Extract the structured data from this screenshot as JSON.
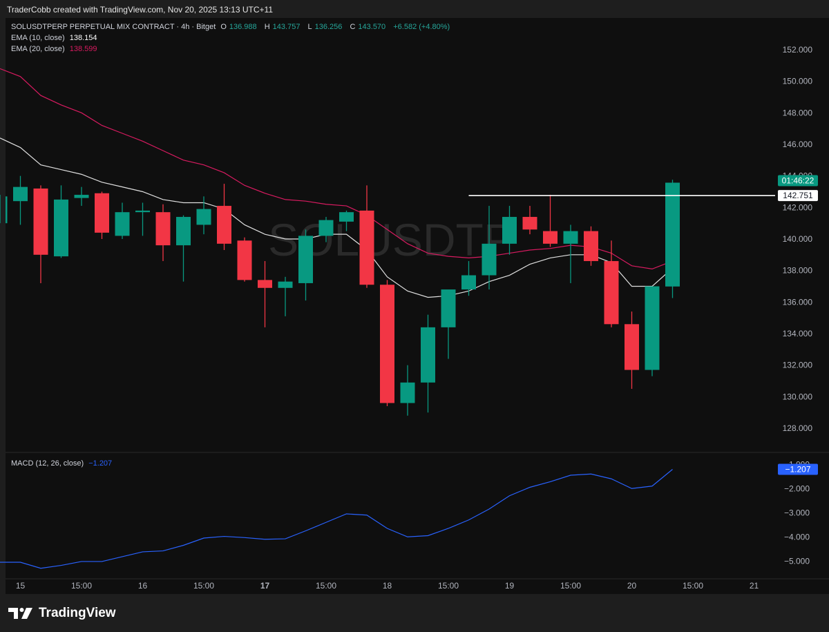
{
  "header": {
    "attribution": "TraderCobb created with TradingView.com, Nov 20, 2025 13:13 UTC+11"
  },
  "legend": {
    "symbol": "SOLUSDTPERP PERPETUAL MIX CONTRACT · 4h · Bitget",
    "o_label": "O",
    "o_value": "136.988",
    "h_label": "H",
    "h_value": "143.757",
    "l_label": "L",
    "l_value": "136.256",
    "c_label": "C",
    "c_value": "143.570",
    "change": "+6.582 (+4.80%)",
    "ema10_label": "EMA (10, close)",
    "ema10_value": "138.154",
    "ema20_label": "EMA (20, close)",
    "ema20_value": "138.599",
    "macd_label": "MACD (12, 26, close)",
    "macd_value": "−1.207"
  },
  "watermark": "SOLUSDTP",
  "footer": {
    "brand": "TradingView"
  },
  "colors": {
    "up": "#089981",
    "down": "#f23645",
    "ema10": "#e0e0e0",
    "ema20": "#d81b60",
    "macd": "#2962ff",
    "background": "#0f0f0f"
  },
  "chart_data": [
    {
      "type": "candlestick",
      "ylim": [
        126.6,
        153.4
      ],
      "y_ticks": [
        "152.000",
        "150.000",
        "148.000",
        "146.000",
        "144.000",
        "142.000",
        "140.000",
        "138.000",
        "136.000",
        "134.000",
        "132.000",
        "130.000",
        "128.000"
      ],
      "x_ticks": [
        "15",
        "15:00",
        "16",
        "15:00",
        "17",
        "15:00",
        "18",
        "15:00",
        "19",
        "15:00",
        "20",
        "15:00",
        "21"
      ],
      "candles": [
        {
          "o": 141.0,
          "h": 142.8,
          "l": 141.0,
          "c": 142.7
        },
        {
          "o": 142.4,
          "h": 144.0,
          "l": 140.9,
          "c": 143.3
        },
        {
          "o": 143.2,
          "h": 143.4,
          "l": 137.2,
          "c": 139.0
        },
        {
          "o": 138.9,
          "h": 143.4,
          "l": 138.8,
          "c": 142.5
        },
        {
          "o": 142.6,
          "h": 143.3,
          "l": 142.1,
          "c": 142.8
        },
        {
          "o": 142.9,
          "h": 143.0,
          "l": 140.0,
          "c": 140.4
        },
        {
          "o": 140.2,
          "h": 142.3,
          "l": 140.0,
          "c": 141.7
        },
        {
          "o": 141.7,
          "h": 142.3,
          "l": 140.2,
          "c": 141.8
        },
        {
          "o": 141.7,
          "h": 142.2,
          "l": 138.6,
          "c": 139.6
        },
        {
          "o": 139.6,
          "h": 141.5,
          "l": 137.3,
          "c": 141.4
        },
        {
          "o": 140.9,
          "h": 142.7,
          "l": 140.3,
          "c": 141.9
        },
        {
          "o": 142.1,
          "h": 143.5,
          "l": 139.3,
          "c": 139.7
        },
        {
          "o": 139.9,
          "h": 140.1,
          "l": 137.3,
          "c": 137.4
        },
        {
          "o": 137.4,
          "h": 138.6,
          "l": 134.4,
          "c": 136.9
        },
        {
          "o": 136.9,
          "h": 137.6,
          "l": 135.1,
          "c": 137.3
        },
        {
          "o": 137.2,
          "h": 140.6,
          "l": 136.1,
          "c": 140.2
        },
        {
          "o": 140.2,
          "h": 141.4,
          "l": 139.8,
          "c": 141.2
        },
        {
          "o": 141.1,
          "h": 141.8,
          "l": 140.5,
          "c": 141.7
        },
        {
          "o": 141.8,
          "h": 143.4,
          "l": 136.9,
          "c": 137.1
        },
        {
          "o": 137.1,
          "h": 137.4,
          "l": 129.4,
          "c": 129.6
        },
        {
          "o": 129.6,
          "h": 132.0,
          "l": 128.8,
          "c": 130.9
        },
        {
          "o": 130.9,
          "h": 135.2,
          "l": 129.0,
          "c": 134.4
        },
        {
          "o": 134.4,
          "h": 136.7,
          "l": 132.4,
          "c": 136.8
        },
        {
          "o": 136.8,
          "h": 138.6,
          "l": 136.4,
          "c": 137.7
        },
        {
          "o": 137.7,
          "h": 142.1,
          "l": 136.8,
          "c": 139.7
        },
        {
          "o": 139.7,
          "h": 142.1,
          "l": 139.0,
          "c": 141.4
        },
        {
          "o": 141.4,
          "h": 142.1,
          "l": 140.3,
          "c": 140.6
        },
        {
          "o": 140.5,
          "h": 142.8,
          "l": 139.5,
          "c": 139.7
        },
        {
          "o": 139.7,
          "h": 140.9,
          "l": 137.2,
          "c": 140.5
        },
        {
          "o": 140.5,
          "h": 140.8,
          "l": 138.3,
          "c": 138.6
        },
        {
          "o": 138.6,
          "h": 139.9,
          "l": 134.4,
          "c": 134.6
        },
        {
          "o": 134.6,
          "h": 135.4,
          "l": 130.5,
          "c": 131.7
        },
        {
          "o": 131.7,
          "h": 137.0,
          "l": 131.3,
          "c": 137.0
        },
        {
          "o": 136.988,
          "h": 143.757,
          "l": 136.256,
          "c": 143.57
        }
      ],
      "ema10": [
        146.4,
        145.8,
        144.7,
        144.4,
        144.1,
        143.6,
        143.3,
        143.0,
        142.5,
        142.3,
        142.3,
        141.9,
        140.9,
        140.3,
        140.0,
        140.0,
        140.3,
        140.3,
        139.3,
        137.6,
        136.7,
        136.3,
        136.4,
        136.7,
        137.3,
        137.7,
        138.4,
        138.8,
        139.0,
        139.0,
        138.5,
        137.0,
        137.0,
        138.154
      ],
      "ema20": [
        150.8,
        150.3,
        149.1,
        148.5,
        148.0,
        147.2,
        146.7,
        146.2,
        145.6,
        145.0,
        144.7,
        144.2,
        143.4,
        142.9,
        142.5,
        142.4,
        142.2,
        142.1,
        141.5,
        140.6,
        139.7,
        139.1,
        138.9,
        138.8,
        138.9,
        139.1,
        139.3,
        139.4,
        139.6,
        139.5,
        139.1,
        138.3,
        138.1,
        138.599
      ],
      "horizontal_line": {
        "value": 142.751,
        "label": "142.751"
      },
      "countdown_label": "01:46:22"
    },
    {
      "type": "line",
      "title": "MACD (12, 26, close)",
      "ylim": [
        -5.65,
        -0.65
      ],
      "y_ticks": [
        "−1.000",
        "−2.000",
        "−3.000",
        "−4.000",
        "−5.000"
      ],
      "values": [
        -5.05,
        -5.05,
        -5.3,
        -5.18,
        -5.02,
        -5.02,
        -4.82,
        -4.62,
        -4.58,
        -4.35,
        -4.05,
        -3.98,
        -4.03,
        -4.1,
        -4.08,
        -3.75,
        -3.4,
        -3.05,
        -3.1,
        -3.65,
        -4.0,
        -3.95,
        -3.65,
        -3.3,
        -2.85,
        -2.3,
        -1.95,
        -1.72,
        -1.45,
        -1.4,
        -1.6,
        -2.0,
        -1.9,
        -1.207
      ],
      "last_label": "−1.207"
    }
  ]
}
